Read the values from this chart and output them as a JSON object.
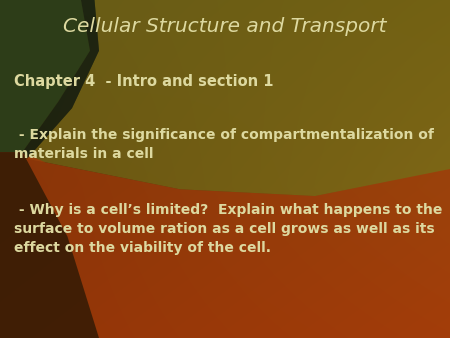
{
  "title": "Cellular Structure and Transport",
  "title_color": "#ddd9a0",
  "title_fontsize": 14.5,
  "subtitle": "Chapter 4  - Intro and section 1",
  "subtitle_color": "#ddd9a0",
  "subtitle_fontsize": 10.5,
  "bullet1": " - Explain the significance of compartmentalization of\nmaterials in a cell",
  "bullet2": " - Why is a cell’s limited?  Explain what happens to the\nsurface to volume ration as a cell grows as well as its\neffect on the viability of the cell.",
  "text_color": "#ddd9a0",
  "body_fontsize": 10,
  "figsize": [
    4.5,
    3.38
  ],
  "dpi": 100,
  "bg_base": "#3a3010",
  "col_dark_green": "#2d3d1a",
  "col_golden": "#7a6a10",
  "col_orange": "#a04010",
  "col_dark_strip": "#252a10"
}
